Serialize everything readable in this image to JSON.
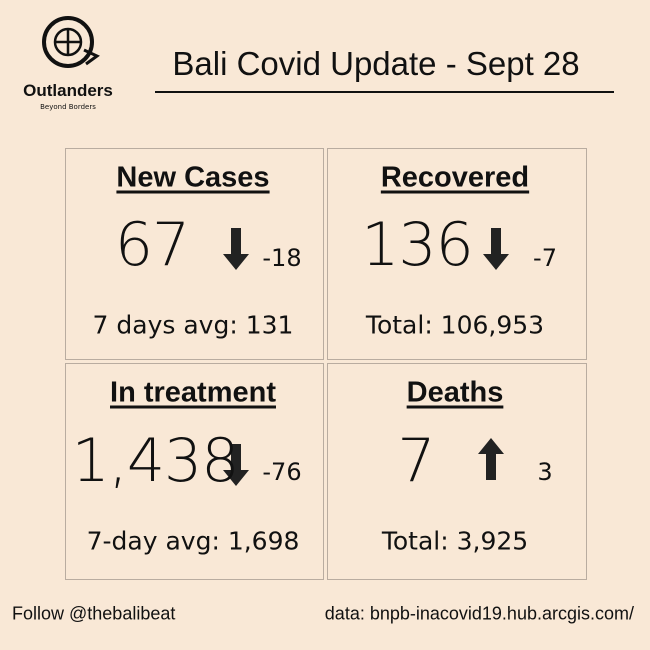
{
  "logo": {
    "name": "Outlanders",
    "tagline": "Beyond Borders"
  },
  "title": "Bali Covid Update - Sept 28",
  "cards": [
    {
      "heading": "New Cases",
      "value": "67",
      "change": "-18",
      "footer": "7 days avg: 131"
    },
    {
      "heading": "Recovered",
      "value": "136",
      "change": "-7",
      "footer": "Total: 106,953"
    },
    {
      "heading": "In treatment",
      "value": "1,438",
      "change": "-76",
      "footer": "7-day avg: 1,698"
    },
    {
      "heading": "Deaths",
      "value": "7",
      "change": "3",
      "footer": "Total: 3,925"
    }
  ],
  "footer": {
    "left": "Follow @thebalibeat",
    "right": "data: bnpb-inacovid19.hub.arcgis.com/"
  }
}
